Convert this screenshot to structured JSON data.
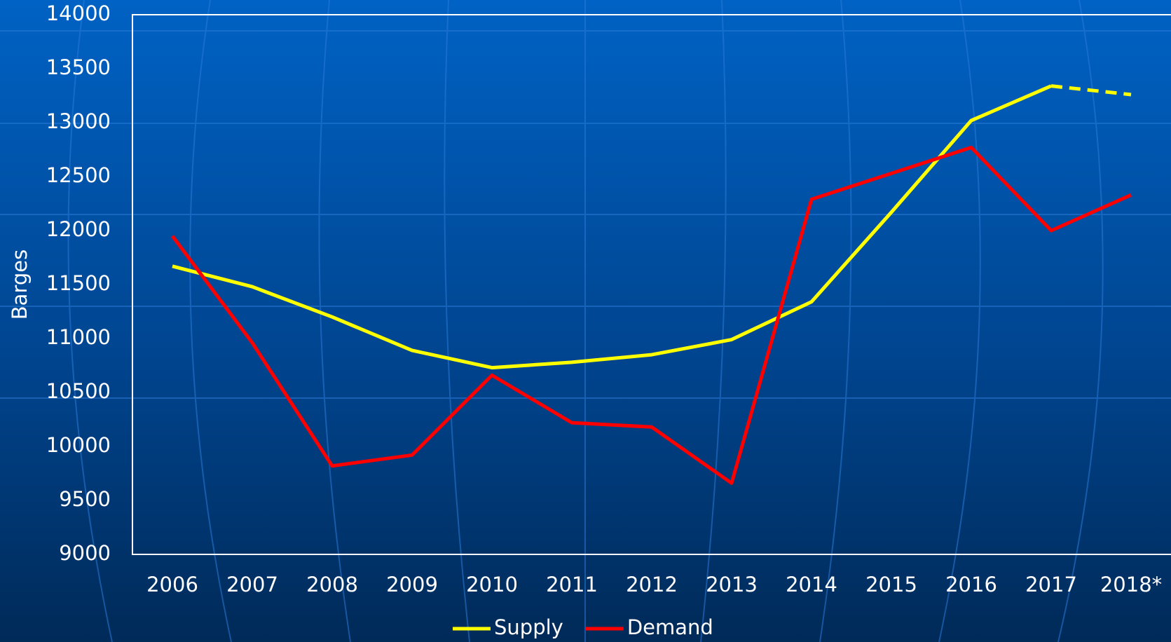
{
  "chart_data": {
    "type": "line",
    "y_label": "Barges",
    "categories": [
      "2006",
      "2007",
      "2008",
      "2009",
      "2010",
      "2011",
      "2012",
      "2013",
      "2014",
      "2015",
      "2016",
      "2017",
      "2018*"
    ],
    "series": [
      {
        "name": "Supply",
        "color": "#ffff00",
        "last_segment": "dashed",
        "values": [
          11670,
          11480,
          11200,
          10890,
          10730,
          10780,
          10850,
          10990,
          11340,
          12170,
          13020,
          13340,
          13260
        ]
      },
      {
        "name": "Demand",
        "color": "#ff0000",
        "values": [
          11950,
          10960,
          9820,
          9920,
          10660,
          10220,
          10180,
          9660,
          12290,
          12530,
          12770,
          12000,
          12330
        ]
      }
    ],
    "ylim": [
      9000,
      14000
    ],
    "yticks": [
      9000,
      9500,
      10000,
      10500,
      11000,
      11500,
      12000,
      12500,
      13000,
      13500,
      14000
    ],
    "legend": "bottom"
  }
}
